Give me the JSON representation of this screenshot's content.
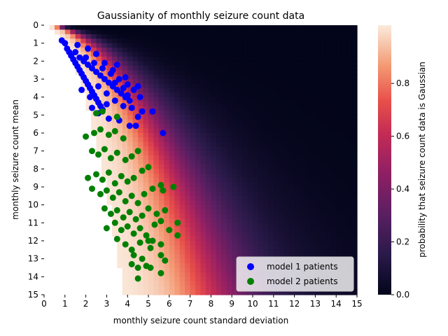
{
  "chart_data": {
    "type": "heatmap",
    "title": "Gaussianity of monthly seizure count data",
    "xlabel": "monthly seizure count standard deviation",
    "ylabel": "monthly seizure count mean",
    "xlim": [
      0,
      15
    ],
    "ylim": [
      0,
      15
    ],
    "y_inverted": true,
    "xticks": [
      "0",
      "1",
      "2",
      "3",
      "4",
      "5",
      "6",
      "7",
      "8",
      "9",
      "10",
      "11",
      "12",
      "13",
      "14",
      "15"
    ],
    "yticks": [
      "0",
      "1",
      "2",
      "3",
      "4",
      "5",
      "6",
      "7",
      "8",
      "9",
      "10",
      "11",
      "12",
      "13",
      "14",
      "15"
    ],
    "colorbar": {
      "label": "probability that seizure count data is Gaussian",
      "range": [
        0.0,
        1.0
      ],
      "ticks": [
        "0.0",
        "0.2",
        "0.4",
        "0.6",
        "0.8"
      ],
      "colormap": "rocket"
    },
    "heatmap_description": {
      "valid_region": "sd >= sqrt(mean) approximately; cells below this boundary are blank",
      "high_probability_band": "bright band just above the lower-left boundary, rising toward mean 8-15 at sd 4-8",
      "low_probability_region": "dark area for large sd relative to mean"
    },
    "legend": {
      "placement": "lower-right",
      "entries": [
        {
          "name": "model 1 patients",
          "color": "#0000ff"
        },
        {
          "name": "model 2 patients",
          "color": "#008000"
        }
      ]
    },
    "series": [
      {
        "name": "model 1 patients",
        "color": "#0000ff",
        "points": [
          [
            0.85,
            0.85
          ],
          [
            1.0,
            1.0
          ],
          [
            1.1,
            1.3
          ],
          [
            1.2,
            1.5
          ],
          [
            1.3,
            1.7
          ],
          [
            1.4,
            1.9
          ],
          [
            1.5,
            2.1
          ],
          [
            1.6,
            2.3
          ],
          [
            1.7,
            2.5
          ],
          [
            1.8,
            2.7
          ],
          [
            1.9,
            2.9
          ],
          [
            2.0,
            3.1
          ],
          [
            2.1,
            3.3
          ],
          [
            2.2,
            3.5
          ],
          [
            2.3,
            3.7
          ],
          [
            2.4,
            3.9
          ],
          [
            2.5,
            4.1
          ],
          [
            2.6,
            4.3
          ],
          [
            2.7,
            4.5
          ],
          [
            2.8,
            4.7
          ],
          [
            1.5,
            1.5
          ],
          [
            1.7,
            1.8
          ],
          [
            1.9,
            2.0
          ],
          [
            2.1,
            2.2
          ],
          [
            2.3,
            2.4
          ],
          [
            2.5,
            2.6
          ],
          [
            2.7,
            2.8
          ],
          [
            2.9,
            3.0
          ],
          [
            3.1,
            3.2
          ],
          [
            3.3,
            3.4
          ],
          [
            3.5,
            3.6
          ],
          [
            3.7,
            3.8
          ],
          [
            3.9,
            4.0
          ],
          [
            4.1,
            4.2
          ],
          [
            2.0,
            1.8
          ],
          [
            2.4,
            2.1
          ],
          [
            2.8,
            2.4
          ],
          [
            3.2,
            2.7
          ],
          [
            3.6,
            3.0
          ],
          [
            4.0,
            3.3
          ],
          [
            4.3,
            3.6
          ],
          [
            3.9,
            2.9
          ],
          [
            4.5,
            3.4
          ],
          [
            4.6,
            4.0
          ],
          [
            4.7,
            4.8
          ],
          [
            4.5,
            5.1
          ],
          [
            4.1,
            5.6
          ],
          [
            4.4,
            5.6
          ],
          [
            5.2,
            4.8
          ],
          [
            5.7,
            6.0
          ],
          [
            3.6,
            5.3
          ],
          [
            3.1,
            5.2
          ],
          [
            2.6,
            4.9
          ],
          [
            2.3,
            4.6
          ],
          [
            3.0,
            4.4
          ],
          [
            3.4,
            4.2
          ],
          [
            3.8,
            4.5
          ],
          [
            4.2,
            4.6
          ],
          [
            1.8,
            3.6
          ],
          [
            2.2,
            4.0
          ],
          [
            2.6,
            3.4
          ],
          [
            3.0,
            3.8
          ],
          [
            3.4,
            3.2
          ],
          [
            3.8,
            3.5
          ],
          [
            4.0,
            3.9
          ],
          [
            2.9,
            2.1
          ],
          [
            3.3,
            2.5
          ],
          [
            3.5,
            2.2
          ],
          [
            2.5,
            1.6
          ],
          [
            2.1,
            1.3
          ],
          [
            1.6,
            1.1
          ]
        ]
      },
      {
        "name": "model 2 patients",
        "color": "#008000",
        "points": [
          [
            2.5,
            4.9
          ],
          [
            2.8,
            4.8
          ],
          [
            3.5,
            5.1
          ],
          [
            2.0,
            6.2
          ],
          [
            2.4,
            6.0
          ],
          [
            2.7,
            5.8
          ],
          [
            3.1,
            6.1
          ],
          [
            3.4,
            5.9
          ],
          [
            3.8,
            6.3
          ],
          [
            2.3,
            7.0
          ],
          [
            2.6,
            7.2
          ],
          [
            2.9,
            6.9
          ],
          [
            3.2,
            7.4
          ],
          [
            3.5,
            7.1
          ],
          [
            3.9,
            7.5
          ],
          [
            4.2,
            7.3
          ],
          [
            4.5,
            7.0
          ],
          [
            2.1,
            8.5
          ],
          [
            2.5,
            8.3
          ],
          [
            2.8,
            8.6
          ],
          [
            3.1,
            8.2
          ],
          [
            3.4,
            8.8
          ],
          [
            3.7,
            8.4
          ],
          [
            4.0,
            8.7
          ],
          [
            4.3,
            8.5
          ],
          [
            4.7,
            8.1
          ],
          [
            5.0,
            7.9
          ],
          [
            2.3,
            9.1
          ],
          [
            2.7,
            9.4
          ],
          [
            3.0,
            9.2
          ],
          [
            3.3,
            9.6
          ],
          [
            3.6,
            9.3
          ],
          [
            3.9,
            9.8
          ],
          [
            4.2,
            9.5
          ],
          [
            4.5,
            9.9
          ],
          [
            4.8,
            9.4
          ],
          [
            5.2,
            9.1
          ],
          [
            5.6,
            8.9
          ],
          [
            6.2,
            9.0
          ],
          [
            5.7,
            9.2
          ],
          [
            2.9,
            10.2
          ],
          [
            3.2,
            10.5
          ],
          [
            3.5,
            10.3
          ],
          [
            3.8,
            10.7
          ],
          [
            4.1,
            10.4
          ],
          [
            4.4,
            10.8
          ],
          [
            4.7,
            10.6
          ],
          [
            5.0,
            10.2
          ],
          [
            5.4,
            10.5
          ],
          [
            5.8,
            10.3
          ],
          [
            3.0,
            11.3
          ],
          [
            3.4,
            11.0
          ],
          [
            3.7,
            11.4
          ],
          [
            4.0,
            11.2
          ],
          [
            4.3,
            11.6
          ],
          [
            4.6,
            11.3
          ],
          [
            4.9,
            11.7
          ],
          [
            5.3,
            11.1
          ],
          [
            5.6,
            10.9
          ],
          [
            6.0,
            11.4
          ],
          [
            6.4,
            11.0
          ],
          [
            6.4,
            11.7
          ],
          [
            3.5,
            11.9
          ],
          [
            3.9,
            12.2
          ],
          [
            4.2,
            12.5
          ],
          [
            4.6,
            12.1
          ],
          [
            5.1,
            12.4
          ],
          [
            5.2,
            12.0
          ],
          [
            5.6,
            12.2
          ],
          [
            4.3,
            12.8
          ],
          [
            4.7,
            13.0
          ],
          [
            5.6,
            12.8
          ],
          [
            5.8,
            13.1
          ],
          [
            4.2,
            13.3
          ],
          [
            4.5,
            13.5
          ],
          [
            4.9,
            13.4
          ],
          [
            4.5,
            14.1
          ],
          [
            5.6,
            13.8
          ],
          [
            5.0,
            12.0
          ],
          [
            5.1,
            13.5
          ]
        ]
      }
    ]
  }
}
